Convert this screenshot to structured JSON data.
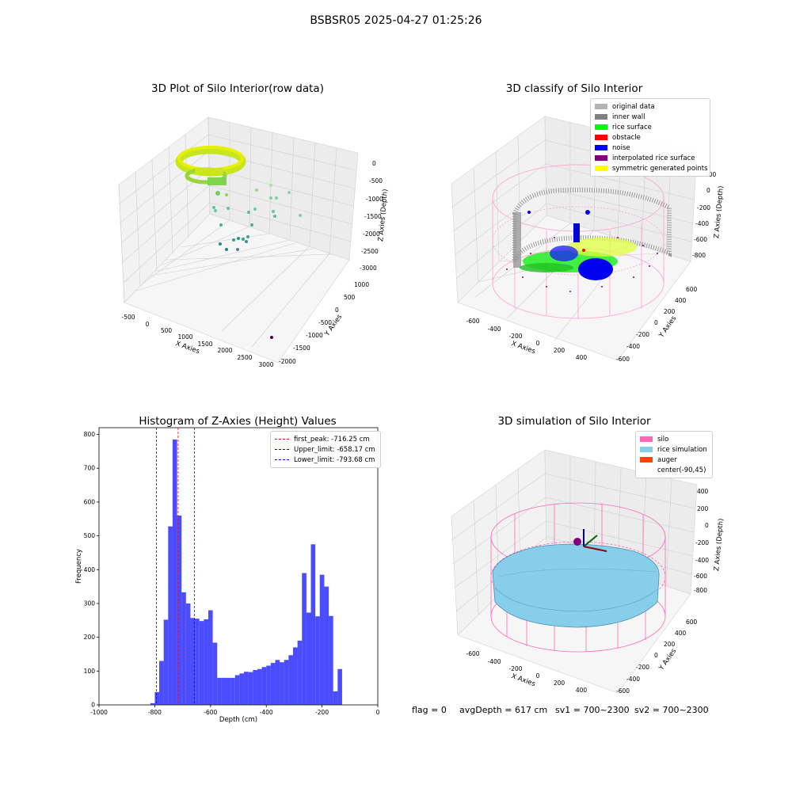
{
  "suptitle": "BSBSR05 2025-04-27 01:25:26",
  "panels": {
    "raw": {
      "title": "3D Plot of Silo Interior(row data)",
      "x_label": "X Axies",
      "y_label": "Y Axies",
      "z_label": "Z Axies (Depth)",
      "x_ticks": [
        "-500",
        "0",
        "500",
        "1000",
        "1500",
        "2000",
        "2500",
        "3000"
      ],
      "y_ticks": [
        "1000",
        "500",
        "0",
        "-500",
        "-1000",
        "-1500",
        "-2000"
      ],
      "z_ticks": [
        "0",
        "-500",
        "-1000",
        "-1500",
        "-2000",
        "-2500",
        "-3000"
      ]
    },
    "classify": {
      "title": "3D classify of Silo Interior",
      "x_label": "X Axies",
      "y_label": "Y Axies",
      "z_label": "Z Axies (Depth)",
      "x_ticks": [
        "-600",
        "-400",
        "-200",
        "0",
        "200",
        "400"
      ],
      "y_ticks": [
        "600",
        "400",
        "200",
        "0",
        "-200",
        "-400",
        "-600"
      ],
      "z_ticks": [
        "200",
        "0",
        "-200",
        "-400",
        "-600",
        "-800"
      ],
      "legend": [
        {
          "label": "original data",
          "color": "#b3b3b3"
        },
        {
          "label": "inner wall",
          "color": "#808080"
        },
        {
          "label": "rice surface",
          "color": "#00ff00"
        },
        {
          "label": "obstacle",
          "color": "#ff0000"
        },
        {
          "label": "noise",
          "color": "#0000ff"
        },
        {
          "label": "interpolated rice surface",
          "color": "#800080"
        },
        {
          "label": "symmetric generated points",
          "color": "#ffff00"
        }
      ]
    },
    "simulation": {
      "title": "3D simulation of Silo Interior",
      "x_label": "X Axies",
      "y_label": "Y Axies",
      "z_label": "Z Axies (Depth)",
      "x_ticks": [
        "-600",
        "-400",
        "-200",
        "0",
        "200",
        "400"
      ],
      "y_ticks": [
        "600",
        "400",
        "200",
        "0",
        "-200",
        "-400",
        "-600"
      ],
      "z_ticks": [
        "400",
        "200",
        "0",
        "-200",
        "-400",
        "-600",
        "-800"
      ],
      "legend": [
        {
          "label": "silo",
          "color": "#ff69b4"
        },
        {
          "label": "rice simulation",
          "color": "#87ceeb"
        },
        {
          "label": "auger",
          "color": "#ff4500"
        },
        {
          "label": "center(-90,45)",
          "color": ""
        }
      ]
    }
  },
  "chart_data": {
    "type": "bar",
    "title": "Histogram of Z-Axies (Height) Values",
    "xlabel": "Depth (cm)",
    "ylabel": "Frequency",
    "xlim": [
      -1000,
      0
    ],
    "ylim": [
      0,
      820
    ],
    "x_ticks": [
      -1000,
      -800,
      -600,
      -400,
      -200,
      0
    ],
    "y_ticks": [
      0,
      100,
      200,
      300,
      400,
      500,
      600,
      700,
      800
    ],
    "bin_width": 16,
    "bins": [
      {
        "x0": -816,
        "count": 5
      },
      {
        "x0": -800,
        "count": 38
      },
      {
        "x0": -784,
        "count": 130
      },
      {
        "x0": -768,
        "count": 252
      },
      {
        "x0": -752,
        "count": 528
      },
      {
        "x0": -736,
        "count": 785
      },
      {
        "x0": -720,
        "count": 560
      },
      {
        "x0": -704,
        "count": 333
      },
      {
        "x0": -688,
        "count": 300
      },
      {
        "x0": -672,
        "count": 257
      },
      {
        "x0": -656,
        "count": 255
      },
      {
        "x0": -640,
        "count": 248
      },
      {
        "x0": -624,
        "count": 253
      },
      {
        "x0": -608,
        "count": 280
      },
      {
        "x0": -592,
        "count": 184
      },
      {
        "x0": -576,
        "count": 80
      },
      {
        "x0": -560,
        "count": 80
      },
      {
        "x0": -544,
        "count": 80
      },
      {
        "x0": -528,
        "count": 80
      },
      {
        "x0": -512,
        "count": 88
      },
      {
        "x0": -496,
        "count": 93
      },
      {
        "x0": -480,
        "count": 98
      },
      {
        "x0": -464,
        "count": 97
      },
      {
        "x0": -448,
        "count": 103
      },
      {
        "x0": -432,
        "count": 106
      },
      {
        "x0": -416,
        "count": 112
      },
      {
        "x0": -400,
        "count": 116
      },
      {
        "x0": -384,
        "count": 124
      },
      {
        "x0": -368,
        "count": 133
      },
      {
        "x0": -352,
        "count": 126
      },
      {
        "x0": -336,
        "count": 133
      },
      {
        "x0": -320,
        "count": 147
      },
      {
        "x0": -304,
        "count": 170
      },
      {
        "x0": -288,
        "count": 190
      },
      {
        "x0": -272,
        "count": 390
      },
      {
        "x0": -256,
        "count": 273
      },
      {
        "x0": -240,
        "count": 475
      },
      {
        "x0": -224,
        "count": 262
      },
      {
        "x0": -208,
        "count": 385
      },
      {
        "x0": -192,
        "count": 350
      },
      {
        "x0": -176,
        "count": 263
      },
      {
        "x0": -160,
        "count": 40
      },
      {
        "x0": -144,
        "count": 106
      }
    ],
    "bar_color": "#0000ff",
    "bar_opacity": 0.7,
    "vlines": [
      {
        "x": -716.25,
        "color": "#ff0000",
        "label": "first_peak: -716.25 cm"
      },
      {
        "x": -658.17,
        "color": "#0000ff",
        "label": "Upper_limit: -658.17 cm"
      },
      {
        "x": -793.68,
        "color": "#0000ff",
        "label": "Lower_limit: -793.68 cm"
      }
    ],
    "legend_position": "top-right"
  },
  "footer": {
    "flag": "flag = 0",
    "avg_depth": "avgDepth = 617 cm",
    "sv1": "sv1 = 700~2300",
    "sv2": "sv2 = 700~2300"
  }
}
